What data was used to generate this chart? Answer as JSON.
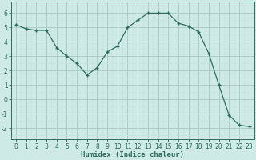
{
  "x": [
    0,
    1,
    2,
    3,
    4,
    5,
    6,
    7,
    8,
    9,
    10,
    11,
    12,
    13,
    14,
    15,
    16,
    17,
    18,
    19,
    20,
    21,
    22,
    23
  ],
  "y": [
    5.2,
    4.9,
    4.8,
    4.8,
    3.6,
    3.0,
    2.5,
    1.7,
    2.2,
    3.3,
    3.7,
    5.0,
    5.5,
    6.0,
    6.0,
    6.0,
    5.3,
    5.1,
    4.7,
    3.2,
    1.0,
    -1.1,
    -1.8,
    -1.9
  ],
  "line_color": "#2e6b5e",
  "marker": "+",
  "marker_size": 3.5,
  "marker_lw": 1.0,
  "line_width": 0.9,
  "bg_color": "#ceeae6",
  "grid_major_color": "#aaccc8",
  "grid_minor_color": "#c4e4e0",
  "tick_color": "#2e6b5e",
  "label_color": "#2e6b5e",
  "xlabel": "Humidex (Indice chaleur)",
  "xlim": [
    -0.5,
    23.5
  ],
  "ylim": [
    -2.8,
    6.8
  ],
  "yticks": [
    -2,
    -1,
    0,
    1,
    2,
    3,
    4,
    5,
    6
  ],
  "xticks": [
    0,
    1,
    2,
    3,
    4,
    5,
    6,
    7,
    8,
    9,
    10,
    11,
    12,
    13,
    14,
    15,
    16,
    17,
    18,
    19,
    20,
    21,
    22,
    23
  ],
  "xlabel_fontsize": 6.5,
  "tick_fontsize": 5.5
}
